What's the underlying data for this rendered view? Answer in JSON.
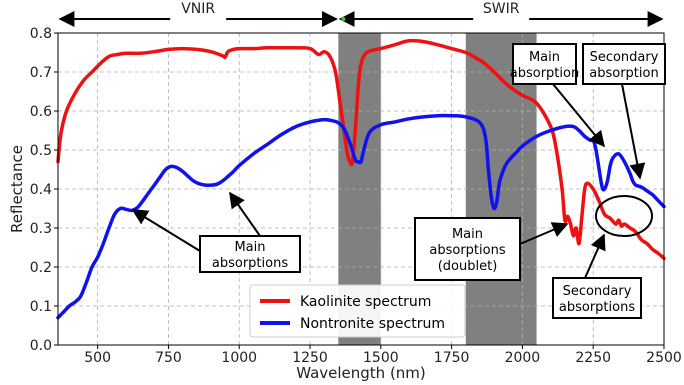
{
  "chart_data": {
    "type": "line",
    "xlabel": "Wavelength (nm)",
    "ylabel": "Reflectance",
    "xlim": [
      360,
      2500
    ],
    "ylim": [
      0.0,
      0.8
    ],
    "xticks": [
      500,
      750,
      1000,
      1250,
      1500,
      1750,
      2000,
      2250,
      2500
    ],
    "xtick_labels": [
      "500",
      "750",
      "1000",
      "1250",
      "1500",
      "1750",
      "2000",
      "2250",
      "2500"
    ],
    "yticks": [
      0.0,
      0.1,
      0.2,
      0.3,
      0.4,
      0.5,
      0.6,
      0.7,
      0.8
    ],
    "ytick_labels": [
      "0.0",
      "0.1",
      "0.2",
      "0.3",
      "0.4",
      "0.5",
      "0.6",
      "0.7",
      "0.8"
    ],
    "grid": true,
    "legend_position": "bottom-center",
    "shaded_bands": [
      {
        "from": 1350,
        "to": 1500,
        "color": "#808080"
      },
      {
        "from": 1800,
        "to": 2050,
        "color": "#808080"
      }
    ],
    "regions": [
      {
        "label": "VNIR",
        "from": 360,
        "to": 1350
      },
      {
        "label": "SWIR",
        "from": 1350,
        "to": 2500
      }
    ],
    "series": [
      {
        "name": "Kaolinite spectrum",
        "color": "#ee1111",
        "x": [
          360,
          370,
          390,
          420,
          450,
          480,
          510,
          540,
          570,
          600,
          650,
          700,
          750,
          800,
          850,
          900,
          940,
          950,
          960,
          980,
          1000,
          1050,
          1100,
          1150,
          1200,
          1250,
          1280,
          1300,
          1320,
          1340,
          1360,
          1380,
          1390,
          1400,
          1410,
          1420,
          1430,
          1450,
          1500,
          1550,
          1600,
          1650,
          1700,
          1750,
          1800,
          1850,
          1870,
          1900,
          1950,
          2000,
          2050,
          2100,
          2120,
          2140,
          2150,
          2160,
          2170,
          2180,
          2190,
          2200,
          2210,
          2220,
          2230,
          2250,
          2270,
          2290,
          2310,
          2330,
          2340,
          2350,
          2360,
          2380,
          2400,
          2420,
          2440,
          2460,
          2480,
          2500
        ],
        "y": [
          0.47,
          0.54,
          0.6,
          0.645,
          0.678,
          0.7,
          0.722,
          0.74,
          0.745,
          0.748,
          0.748,
          0.752,
          0.758,
          0.76,
          0.758,
          0.752,
          0.742,
          0.738,
          0.752,
          0.758,
          0.76,
          0.76,
          0.762,
          0.762,
          0.762,
          0.76,
          0.745,
          0.752,
          0.74,
          0.7,
          0.6,
          0.5,
          0.47,
          0.47,
          0.55,
          0.66,
          0.72,
          0.75,
          0.76,
          0.77,
          0.78,
          0.778,
          0.77,
          0.76,
          0.75,
          0.73,
          0.72,
          0.7,
          0.665,
          0.64,
          0.62,
          0.56,
          0.5,
          0.4,
          0.32,
          0.33,
          0.31,
          0.28,
          0.3,
          0.26,
          0.33,
          0.4,
          0.415,
          0.4,
          0.37,
          0.335,
          0.325,
          0.31,
          0.32,
          0.305,
          0.31,
          0.3,
          0.29,
          0.27,
          0.26,
          0.245,
          0.235,
          0.222
        ]
      },
      {
        "name": "Nontronite spectrum",
        "color": "#1111ee",
        "x": [
          360,
          380,
          400,
          420,
          440,
          460,
          480,
          500,
          520,
          540,
          560,
          580,
          600,
          620,
          640,
          660,
          680,
          700,
          720,
          740,
          760,
          780,
          800,
          820,
          840,
          860,
          880,
          900,
          920,
          940,
          960,
          980,
          1000,
          1050,
          1100,
          1150,
          1200,
          1250,
          1300,
          1330,
          1350,
          1370,
          1390,
          1410,
          1420,
          1430,
          1440,
          1460,
          1500,
          1550,
          1600,
          1650,
          1700,
          1750,
          1800,
          1850,
          1870,
          1880,
          1890,
          1900,
          1910,
          1920,
          1940,
          1960,
          1980,
          2000,
          2050,
          2100,
          2150,
          2180,
          2200,
          2220,
          2240,
          2250,
          2260,
          2280,
          2290,
          2300,
          2310,
          2320,
          2340,
          2360,
          2380,
          2390,
          2400,
          2420,
          2440,
          2460,
          2480,
          2500
        ],
        "y": [
          0.07,
          0.085,
          0.1,
          0.11,
          0.125,
          0.16,
          0.2,
          0.225,
          0.26,
          0.3,
          0.335,
          0.35,
          0.348,
          0.345,
          0.352,
          0.37,
          0.39,
          0.41,
          0.43,
          0.45,
          0.458,
          0.455,
          0.445,
          0.432,
          0.42,
          0.413,
          0.41,
          0.41,
          0.412,
          0.42,
          0.432,
          0.445,
          0.46,
          0.49,
          0.515,
          0.54,
          0.56,
          0.572,
          0.578,
          0.575,
          0.57,
          0.555,
          0.52,
          0.475,
          0.47,
          0.47,
          0.5,
          0.545,
          0.565,
          0.572,
          0.58,
          0.585,
          0.588,
          0.588,
          0.585,
          0.57,
          0.53,
          0.45,
          0.38,
          0.35,
          0.37,
          0.42,
          0.46,
          0.48,
          0.495,
          0.51,
          0.535,
          0.55,
          0.56,
          0.56,
          0.55,
          0.535,
          0.525,
          0.525,
          0.5,
          0.41,
          0.4,
          0.42,
          0.46,
          0.48,
          0.49,
          0.47,
          0.44,
          0.42,
          0.41,
          0.405,
          0.395,
          0.385,
          0.37,
          0.355
        ]
      }
    ],
    "annotations": [
      {
        "lines": [
          "Main",
          "absorptions"
        ]
      },
      {
        "lines": [
          "Main",
          "absorptions",
          "(doublet)"
        ]
      },
      {
        "lines": [
          "Main",
          "absorption"
        ]
      },
      {
        "lines": [
          "Secondary",
          "absorption"
        ]
      },
      {
        "lines": [
          "Secondary",
          "absorptions"
        ]
      }
    ]
  }
}
